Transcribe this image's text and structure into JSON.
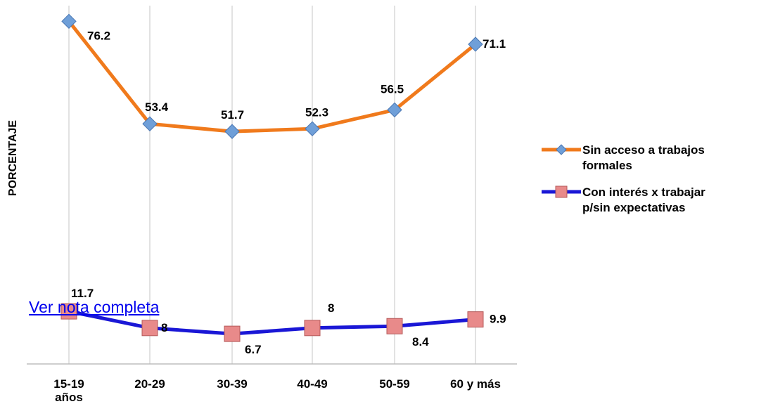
{
  "chart_data": {
    "type": "line",
    "ylabel": "PORCENTAJE",
    "xlabel": "",
    "categories": [
      [
        "15-19",
        "años"
      ],
      [
        "20-29"
      ],
      [
        "30-39"
      ],
      [
        "40-49"
      ],
      [
        "50-59"
      ],
      [
        "60 y más"
      ]
    ],
    "ylim": [
      0,
      80
    ],
    "grid": "vertical",
    "legend_position": "right",
    "series": [
      {
        "name": [
          "Sin acceso a trabajos",
          "formales"
        ],
        "values": [
          76.2,
          53.4,
          51.7,
          52.3,
          56.5,
          71.1
        ],
        "labels": [
          "76.2",
          "53.4",
          "51.7",
          "52.3",
          "56.5",
          "71.1"
        ],
        "line_color": "#f07a1c",
        "marker": "diamond",
        "marker_color": "#6f9fd8"
      },
      {
        "name": [
          "Con interés x trabajar",
          "p/sin expectativas"
        ],
        "values": [
          11.7,
          8.0,
          6.7,
          8.0,
          8.4,
          9.9
        ],
        "labels": [
          "11.7",
          "8",
          "6.7",
          "8",
          "8.4",
          "9.9"
        ],
        "line_color": "#1a17d6",
        "marker": "square",
        "marker_color": "#e88a8a"
      }
    ]
  },
  "link": {
    "text": "Ver nota completa"
  }
}
